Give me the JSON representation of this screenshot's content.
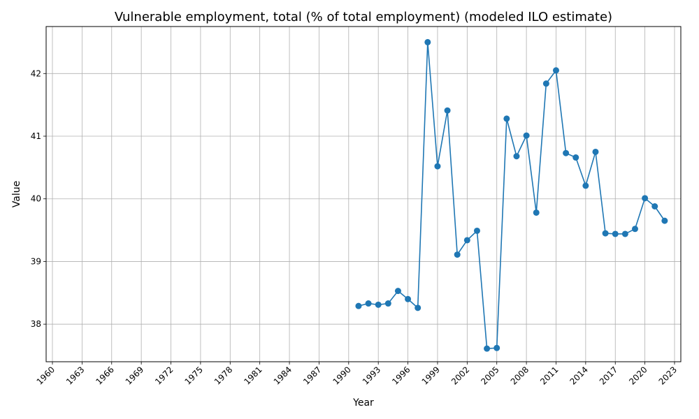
{
  "chart_data": {
    "type": "line",
    "title": "Vulnerable employment, total (% of total employment) (modeled ILO estimate)",
    "xlabel": "Year",
    "ylabel": "Value",
    "xlim": [
      1960,
      2023
    ],
    "ylim": [
      37.4,
      42.75
    ],
    "x_ticks": [
      1960,
      1963,
      1966,
      1969,
      1972,
      1975,
      1978,
      1981,
      1984,
      1987,
      1990,
      1993,
      1996,
      1999,
      2002,
      2005,
      2008,
      2011,
      2014,
      2017,
      2020,
      2023
    ],
    "y_ticks": [
      38,
      39,
      40,
      41,
      42
    ],
    "grid": true,
    "series": [
      {
        "color": "#1f77b4",
        "x": [
          1991,
          1992,
          1993,
          1994,
          1995,
          1996,
          1997,
          1998,
          1999,
          2000,
          2001,
          2002,
          2003,
          2004,
          2005,
          2006,
          2007,
          2008,
          2009,
          2010,
          2011,
          2012,
          2013,
          2014,
          2015,
          2016,
          2017,
          2018,
          2019,
          2020,
          2021,
          2022
        ],
        "values": [
          38.29,
          38.33,
          38.31,
          38.33,
          38.53,
          38.4,
          38.26,
          42.5,
          40.52,
          41.41,
          39.11,
          39.34,
          39.49,
          37.61,
          37.62,
          41.28,
          40.68,
          41.01,
          39.78,
          41.84,
          42.05,
          40.73,
          40.66,
          40.21,
          40.75,
          39.45,
          39.44,
          39.44,
          39.52,
          40.01,
          39.88,
          39.65
        ]
      }
    ]
  }
}
